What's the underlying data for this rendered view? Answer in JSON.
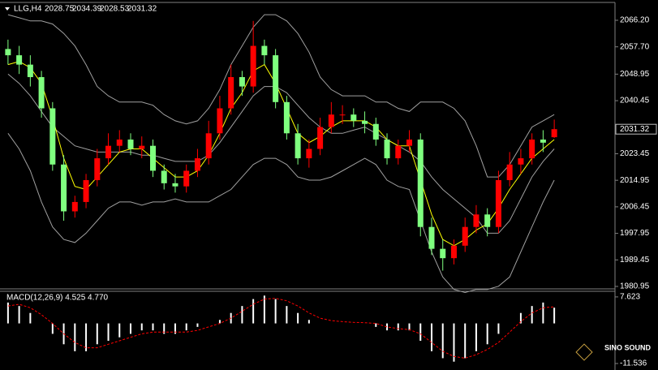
{
  "chart_data": [
    {
      "type": "candlestick",
      "title": "LLG,H4",
      "open": [
        2057,
        2055,
        2052,
        2048,
        2038,
        2020,
        2005,
        2008,
        2015,
        2022,
        2026,
        2028,
        2025,
        2026,
        2018,
        2014,
        2013,
        2018,
        2022,
        2030,
        2038,
        2048,
        2045,
        2058,
        2055,
        2040,
        2030,
        2022,
        2025,
        2032,
        2036,
        2036,
        2034,
        2033,
        2028,
        2022,
        2026,
        2028,
        2000,
        1993,
        1990,
        1994,
        2000,
        2004,
        2000,
        2015,
        2020,
        2022,
        2028,
        2028.75
      ],
      "high": [
        2060,
        2058,
        2055,
        2050,
        2040,
        2023,
        2010,
        2017,
        2025,
        2030,
        2031,
        2030,
        2029,
        2028,
        2020,
        2017,
        2020,
        2025,
        2034,
        2042,
        2052,
        2050,
        2066,
        2060,
        2057,
        2042,
        2033,
        2028,
        2035,
        2040,
        2039,
        2038,
        2037,
        2035,
        2030,
        2028,
        2031,
        2030,
        2003,
        1996,
        1996,
        2003,
        2007,
        2006,
        2018,
        2024,
        2025,
        2030,
        2031,
        2034.39
      ],
      "low": [
        2052,
        2049,
        2045,
        2035,
        2018,
        2002,
        2003,
        2006,
        2013,
        2020,
        2024,
        2023,
        2022,
        2016,
        2012,
        2011,
        2011,
        2016,
        2020,
        2028,
        2036,
        2042,
        2043,
        2052,
        2038,
        2028,
        2020,
        2019,
        2023,
        2030,
        2033,
        2032,
        2030,
        2026,
        2020,
        2020,
        2024,
        1997,
        1991,
        1986,
        1988,
        1992,
        1998,
        1997,
        1998,
        2013,
        2017,
        2020,
        2024,
        2028.53
      ],
      "close": [
        2055,
        2052,
        2048,
        2038,
        2020,
        2005,
        2008,
        2015,
        2022,
        2026,
        2028,
        2025,
        2026,
        2018,
        2014,
        2013,
        2018,
        2022,
        2030,
        2038,
        2048,
        2045,
        2058,
        2055,
        2040,
        2030,
        2022,
        2025,
        2032,
        2036,
        2036,
        2034,
        2033,
        2028,
        2022,
        2026,
        2028,
        2000,
        1993,
        1990,
        1994,
        2000,
        2004,
        2000,
        2015,
        2020,
        2022,
        2028,
        2027,
        2031.32
      ],
      "up_color": "#ff0000",
      "down_color": "#7fff7f",
      "series": [
        {
          "color": "#a0a0a0",
          "values": [
            2068,
            2067,
            2066,
            2066,
            2065,
            2062,
            2058,
            2052,
            2045,
            2042,
            2040,
            2040,
            2040,
            2039,
            2036,
            2034,
            2033,
            2034,
            2038,
            2044,
            2052,
            2058,
            2064,
            2068,
            2068,
            2066,
            2062,
            2056,
            2048,
            2044,
            2042,
            2042,
            2042,
            2040,
            2040,
            2038,
            2037,
            2040,
            2040,
            2040,
            2038,
            2034,
            2026,
            2016,
            2016,
            2020,
            2026,
            2032,
            2034,
            2036
          ]
        },
        {
          "color": "#a0a0a0",
          "values": [
            2049,
            2046,
            2042,
            2037,
            2032,
            2029,
            2026,
            2025,
            2024,
            2024,
            2024,
            2024,
            2023,
            2023,
            2022,
            2021,
            2021,
            2021,
            2023,
            2027,
            2032,
            2037,
            2042,
            2045,
            2045,
            2043,
            2039,
            2035,
            2032,
            2030,
            2030,
            2031,
            2032,
            2030,
            2028,
            2026,
            2024,
            2021,
            2016,
            2012,
            2009,
            2006,
            2003,
            1998,
            1998,
            2002,
            2009,
            2016,
            2021,
            2025
          ]
        },
        {
          "color": "#a0a0a0",
          "values": [
            2030,
            2025,
            2018,
            2008,
            2000,
            1996,
            1995,
            1998,
            2002,
            2006,
            2008,
            2008,
            2007,
            2008,
            2008,
            2009,
            2008,
            2008,
            2008,
            2010,
            2012,
            2016,
            2020,
            2022,
            2022,
            2020,
            2016,
            2015,
            2015,
            2016,
            2018,
            2020,
            2022,
            2020,
            2015,
            2013,
            2012,
            2002,
            1992,
            1984,
            1980,
            1979,
            1980,
            1980,
            1981,
            1984,
            1992,
            2000,
            2008,
            2015
          ]
        },
        {
          "color": "#ffff00",
          "values": [
            2052,
            2053,
            2051,
            2046,
            2035,
            2022,
            2013,
            2012,
            2016,
            2020,
            2024,
            2025,
            2025,
            2022,
            2019,
            2016,
            2016,
            2018,
            2023,
            2030,
            2038,
            2043,
            2050,
            2052,
            2046,
            2038,
            2030,
            2027,
            2029,
            2032,
            2034,
            2034,
            2034,
            2032,
            2028,
            2026,
            2026,
            2015,
            2004,
            1996,
            1994,
            1996,
            1999,
            2001,
            2006,
            2012,
            2017,
            2022,
            2025,
            2028
          ]
        }
      ],
      "ylim": [
        1980.43,
        2071.4
      ],
      "yticks": [
        {
          "value": 2066.2,
          "label": "2066.20"
        },
        {
          "value": 2057.7,
          "label": "2057.70"
        },
        {
          "value": 2048.95,
          "label": "2048.95"
        },
        {
          "value": 2040.45,
          "label": "2040.45"
        },
        {
          "value": 2023.45,
          "label": "2023.45"
        },
        {
          "value": 2014.95,
          "label": "2014.95"
        },
        {
          "value": 2006.45,
          "label": "2006.45"
        },
        {
          "value": 1997.95,
          "label": "1997.95"
        },
        {
          "value": 1989.45,
          "label": "1989.45"
        },
        {
          "value": 1980.95,
          "label": "1980.95"
        }
      ]
    },
    {
      "type": "macd",
      "title": "MACD(12,26,9) 4.525 4.770",
      "series": [
        {
          "color": "#ffffff",
          "values": [
            6,
            5,
            3,
            0,
            -3,
            -6,
            -8,
            -8,
            -6,
            -5,
            -4,
            -3,
            -2,
            -2,
            -3,
            -3,
            -2,
            -1,
            0,
            1,
            3,
            5,
            7,
            8,
            7,
            5,
            3,
            1,
            0,
            0,
            0,
            0,
            0,
            -1,
            -2,
            -2,
            -2,
            -5,
            -8,
            -10,
            -11,
            -10,
            -8,
            -6,
            -3,
            0,
            3,
            5,
            6,
            4.525
          ]
        },
        {
          "color": "#ff0000",
          "values": [
            5,
            5.5,
            4.5,
            2.5,
            0,
            -3,
            -5.5,
            -7,
            -7,
            -6,
            -5,
            -4,
            -3,
            -2.5,
            -2.5,
            -2.5,
            -2.5,
            -2,
            -1,
            0,
            1.5,
            3.5,
            5.5,
            7,
            7.2,
            6.5,
            5,
            3,
            1.5,
            0.8,
            0.5,
            0.3,
            0.2,
            0,
            -1,
            -1.5,
            -1.8,
            -3,
            -5.5,
            -8,
            -9.5,
            -10,
            -9,
            -7.5,
            -5.5,
            -2.5,
            0.5,
            3,
            4.5,
            4.77
          ]
        }
      ],
      "ylim": [
        -12.7,
        9.0
      ],
      "yticks": [
        7.623,
        -11.536
      ]
    }
  ],
  "watermark": "SINO SOUND"
}
